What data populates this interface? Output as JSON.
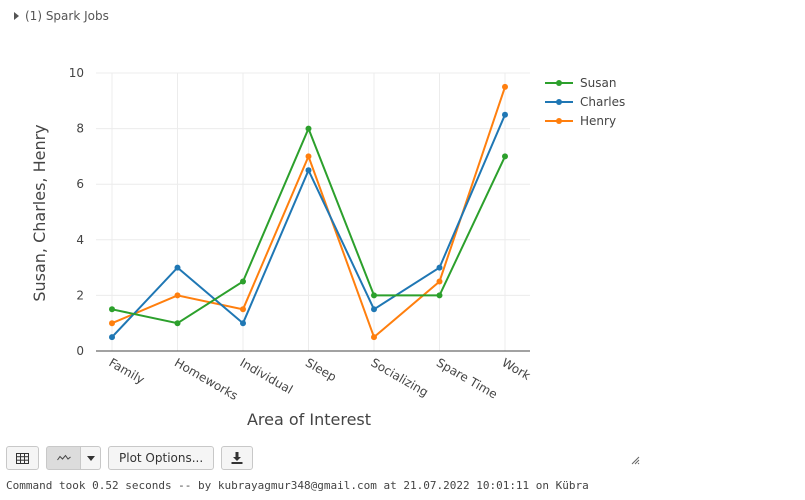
{
  "spark_jobs": {
    "label": "(1) Spark Jobs"
  },
  "chart_data": {
    "type": "line",
    "categories": [
      "Family",
      "Homeworks",
      "Individual",
      "Sleep",
      "Socializing",
      "Spare Time",
      "Work"
    ],
    "series": [
      {
        "name": "Susan",
        "color": "#2ca02c",
        "values": [
          1.5,
          1,
          2.5,
          8,
          2,
          2,
          7
        ]
      },
      {
        "name": "Charles",
        "color": "#1f77b4",
        "values": [
          0.5,
          3,
          1,
          6.5,
          1.5,
          3,
          8.5
        ]
      },
      {
        "name": "Henry",
        "color": "#ff7f0e",
        "values": [
          1,
          2,
          1.5,
          7,
          0.5,
          2.5,
          9.5
        ]
      }
    ],
    "xlabel": "Area of Interest",
    "ylabel": "Susan, Charles, Henry",
    "ylim": [
      0,
      10
    ],
    "yticks": [
      0,
      2,
      4,
      6,
      8,
      10
    ],
    "grid": true,
    "legend": "top-right"
  },
  "toolbar": {
    "table_icon": "table-icon",
    "chart_icon": "line-chart-icon",
    "caret_icon": "caret-down-icon",
    "plot_options_label": "Plot Options...",
    "download_icon": "download-icon"
  },
  "command": {
    "text": "Command took 0.52 seconds -- by kubrayagmur348@gmail.com at 21.07.2022 10:01:11 on Kübra"
  }
}
